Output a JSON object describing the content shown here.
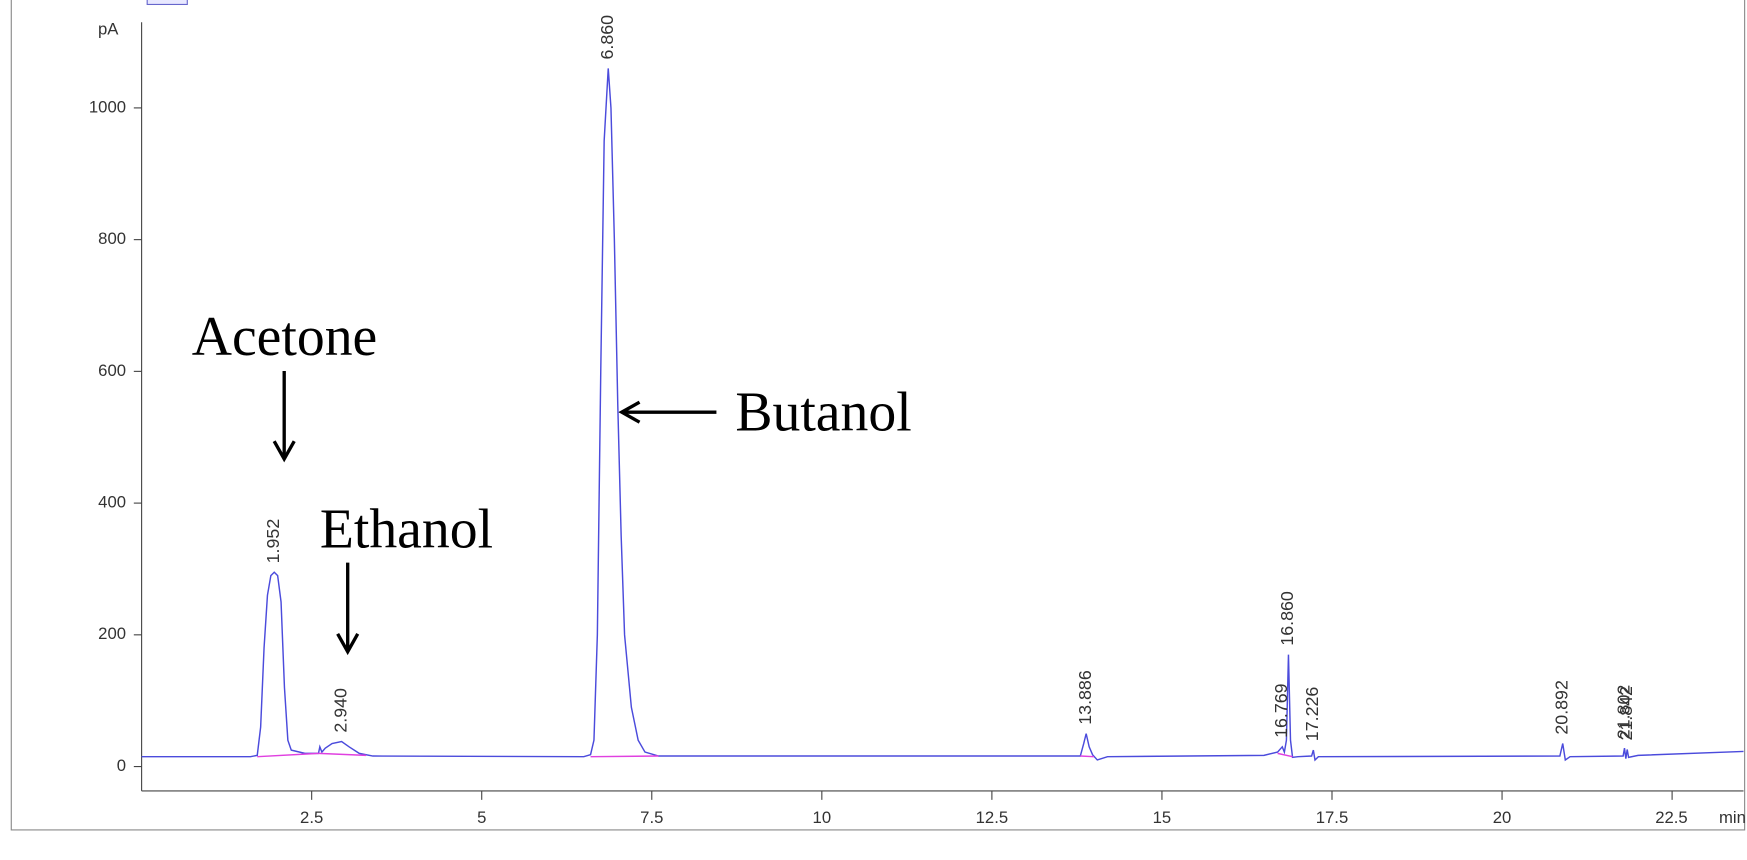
{
  "chart_data": {
    "type": "line",
    "y_label": "pA",
    "x_unit": "min",
    "xlim": [
      0,
      23.55
    ],
    "ylim": [
      -37,
      1130
    ],
    "xticks": [
      2.5,
      5,
      7.5,
      10,
      12.5,
      15,
      17.5,
      20,
      22.5
    ],
    "yticks": [
      0,
      200,
      400,
      600,
      800,
      1000
    ],
    "series": [
      {
        "color": "#4b4bdc",
        "x": [
          0,
          1.6,
          1.7,
          1.75,
          1.8,
          1.85,
          1.9,
          1.95,
          2.0,
          2.05,
          2.1,
          2.15,
          2.2,
          2.4,
          2.6,
          2.62,
          2.65,
          2.7,
          2.8,
          2.94,
          3.05,
          3.2,
          3.4,
          6.5,
          6.6,
          6.65,
          6.7,
          6.75,
          6.8,
          6.86,
          6.9,
          6.95,
          7.0,
          7.05,
          7.1,
          7.2,
          7.3,
          7.4,
          7.6,
          13.8,
          13.85,
          13.886,
          13.93,
          13.98,
          14.05,
          14.2,
          16.5,
          16.7,
          16.769,
          16.8,
          16.83,
          16.86,
          16.89,
          16.92,
          17.0,
          17.2,
          17.226,
          17.25,
          17.3,
          20.85,
          20.892,
          20.93,
          21.0,
          21.78,
          21.8,
          21.82,
          21.84,
          21.86,
          22.0,
          23.55
        ],
        "values": [
          15,
          15,
          17,
          60,
          180,
          260,
          290,
          295,
          290,
          250,
          120,
          40,
          25,
          20,
          20,
          30,
          22,
          28,
          35,
          38,
          30,
          20,
          16,
          15,
          18,
          40,
          200,
          600,
          950,
          1060,
          1000,
          800,
          550,
          350,
          200,
          90,
          40,
          22,
          16,
          16,
          35,
          50,
          30,
          18,
          10,
          15,
          17,
          22,
          30,
          22,
          40,
          170,
          40,
          14,
          15,
          16,
          25,
          10,
          15,
          16,
          35,
          10,
          15,
          16,
          28,
          12,
          26,
          14,
          17,
          23
        ]
      }
    ],
    "baselines": {
      "color": "#e040e0",
      "segments": [
        {
          "x": [
            1.7,
            2.6
          ],
          "y": [
            15,
            20
          ]
        },
        {
          "x": [
            2.6,
            3.3
          ],
          "y": [
            20,
            17
          ]
        },
        {
          "x": [
            6.6,
            7.6
          ],
          "y": [
            15,
            16
          ]
        },
        {
          "x": [
            13.8,
            14.0
          ],
          "y": [
            16,
            15
          ]
        },
        {
          "x": [
            16.7,
            16.92
          ],
          "y": [
            20,
            15
          ]
        }
      ]
    },
    "peaks": [
      {
        "label": "1.952",
        "x": 1.952,
        "y": 295
      },
      {
        "label": "2.940",
        "x": 2.94,
        "y": 38
      },
      {
        "label": "6.860",
        "x": 6.86,
        "y": 1060
      },
      {
        "label": "13.886",
        "x": 13.886,
        "y": 50
      },
      {
        "label": "16.769",
        "x": 16.769,
        "y": 30
      },
      {
        "label": "16.860",
        "x": 16.86,
        "y": 170
      },
      {
        "label": "17.226",
        "x": 17.226,
        "y": 25
      },
      {
        "label": "20.892",
        "x": 20.892,
        "y": 35
      },
      {
        "label": "21.802",
        "x": 21.802,
        "y": 28
      },
      {
        "label": "21.842",
        "x": 21.842,
        "y": 26
      }
    ],
    "annotations": [
      "Acetone",
      "Ethanol",
      "Butanol"
    ]
  }
}
